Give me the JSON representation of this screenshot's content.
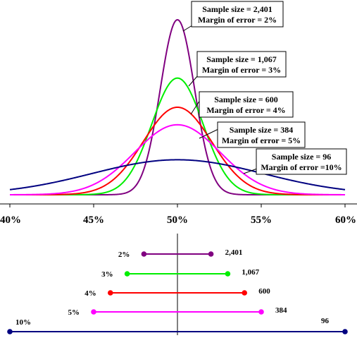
{
  "chart_data": [
    {
      "type": "line",
      "x_range": [
        40,
        60
      ],
      "center": 50,
      "x_ticks": [
        "40%",
        "45%",
        "50%",
        "55%",
        "60%"
      ],
      "x_tick_values": [
        40,
        45,
        50,
        55,
        60
      ],
      "grid": false,
      "series": [
        {
          "sample_size": 2401,
          "margin": 2,
          "color": "#800080",
          "label_line1": "Sample size = 2,401",
          "label_line2": "Margin of error = 2%"
        },
        {
          "sample_size": 1067,
          "margin": 3,
          "color": "#00ee00",
          "label_line1": "Sample size = 1,067",
          "label_line2": "Margin of error = 3%"
        },
        {
          "sample_size": 600,
          "margin": 4,
          "color": "#ff0000",
          "label_line1": "Sample size = 600",
          "label_line2": "Margin of error = 4%"
        },
        {
          "sample_size": 384,
          "margin": 5,
          "color": "#ff00ff",
          "label_line1": "Sample size = 384",
          "label_line2": "Margin of error = 5%"
        },
        {
          "sample_size": 96,
          "margin": 10,
          "color": "#000080",
          "label_line1": "Sample size = 96",
          "label_line2": "Margin of error =10%"
        }
      ]
    },
    {
      "type": "error-bar",
      "center": 50,
      "x_range": [
        40,
        60
      ],
      "intervals": [
        {
          "margin": 2,
          "low": 48,
          "high": 52,
          "left_label": "2%",
          "right_label": "2,401",
          "color": "#800080"
        },
        {
          "margin": 3,
          "low": 47,
          "high": 53,
          "left_label": "3%",
          "right_label": "1,067",
          "color": "#00ee00"
        },
        {
          "margin": 4,
          "low": 46,
          "high": 54,
          "left_label": "4%",
          "right_label": "600",
          "color": "#ff0000"
        },
        {
          "margin": 5,
          "low": 45,
          "high": 55,
          "left_label": "5%",
          "right_label": "384",
          "color": "#ff00ff"
        },
        {
          "margin": 10,
          "low": 40,
          "high": 60,
          "left_label": "10%",
          "right_label": "96",
          "color": "#000080"
        }
      ]
    }
  ]
}
